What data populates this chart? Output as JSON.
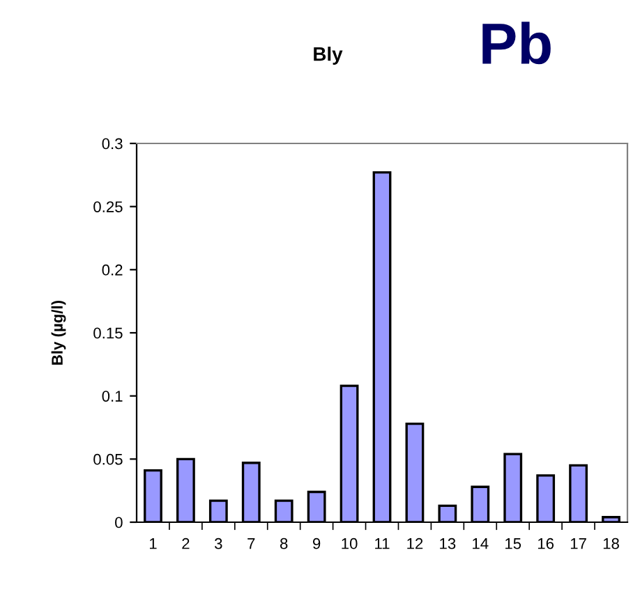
{
  "chart_data": {
    "type": "bar",
    "title": "Bly",
    "ylabel": "Bly (µg/l)",
    "annotations": [
      "Pb"
    ],
    "categories": [
      "1",
      "2",
      "3",
      "7",
      "8",
      "9",
      "10",
      "11",
      "12",
      "13",
      "14",
      "15",
      "16",
      "17",
      "18"
    ],
    "values": [
      0.041,
      0.05,
      0.017,
      0.047,
      0.017,
      0.024,
      0.108,
      0.277,
      0.078,
      0.013,
      0.028,
      0.054,
      0.037,
      0.045,
      0.004
    ],
    "color": "#9999ff",
    "ylim": [
      0,
      0.3
    ],
    "yticks": [
      0,
      0.05,
      0.1,
      0.15,
      0.2,
      0.25,
      0.3
    ],
    "grid": false,
    "legend": false
  }
}
